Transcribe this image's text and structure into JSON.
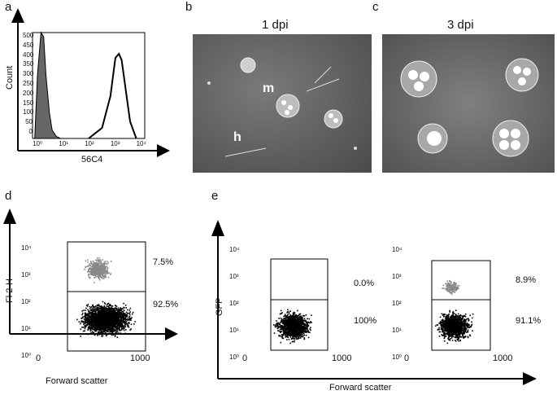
{
  "panels": {
    "a": {
      "letter": "a",
      "ylabel": "Count",
      "xlabel": "56C4",
      "yticks": [
        "500",
        "450",
        "400",
        "350",
        "300",
        "250",
        "200",
        "150",
        "100",
        "50",
        "0"
      ],
      "xticks": [
        "10⁰",
        "10¹",
        "10²",
        "10³",
        "10⁴"
      ]
    },
    "b": {
      "letter": "b",
      "title": "1 dpi",
      "labels": [
        "m",
        "h"
      ]
    },
    "c": {
      "letter": "c",
      "title": "3 dpi"
    },
    "d": {
      "letter": "d",
      "ylabel": "Fl 2-H",
      "xlabel": "Forward scatter",
      "yticks": [
        "10⁴",
        "10³",
        "10²",
        "10¹",
        "10⁰"
      ],
      "xticks": [
        "0",
        "1000"
      ],
      "gates": [
        "7.5%",
        "92.5%"
      ]
    },
    "e": {
      "letter": "e",
      "ylabel": "GFP",
      "xlabel": "Forward scatter",
      "yticks": [
        "10⁴",
        "10³",
        "10²",
        "10¹",
        "10⁰"
      ],
      "xticks": [
        "0",
        "1000"
      ],
      "left_gates": [
        "0.0%",
        "100%"
      ],
      "right_gates": [
        "8.9%",
        "91.1%"
      ]
    }
  },
  "chart_data": [
    {
      "type": "area",
      "panel": "a",
      "xscale": "log",
      "xlim": [
        1,
        10000
      ],
      "ylim": [
        0,
        500
      ],
      "series": [
        {
          "x": [
            1.2,
            1.5,
            2,
            2.5,
            3,
            4,
            5,
            7,
            10
          ],
          "values": [
            0,
            300,
            500,
            480,
            300,
            120,
            40,
            10,
            0
          ]
        },
        {
          "x": [
            100,
            300,
            600,
            900,
            1200,
            1500,
            2000,
            3000,
            5000
          ],
          "values": [
            0,
            50,
            200,
            380,
            400,
            370,
            250,
            80,
            0
          ]
        }
      ]
    },
    {
      "type": "scatter",
      "panel": "d",
      "yscale": "log",
      "xlim": [
        0,
        1000
      ],
      "ylim": [
        1,
        10000
      ],
      "gate_percentages": [
        7.5,
        92.5
      ]
    },
    {
      "type": "scatter",
      "panel": "e-left",
      "yscale": "log",
      "xlim": [
        0,
        1000
      ],
      "ylim": [
        1,
        10000
      ],
      "gate_percentages": [
        0.0,
        100
      ]
    },
    {
      "type": "scatter",
      "panel": "e-right",
      "yscale": "log",
      "xlim": [
        0,
        1000
      ],
      "ylim": [
        1,
        10000
      ],
      "gate_percentages": [
        8.9,
        91.1
      ]
    }
  ]
}
